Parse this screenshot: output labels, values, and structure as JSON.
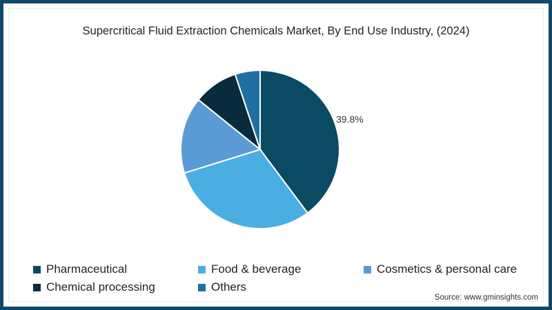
{
  "title": "Supercritical Fluid Extraction Chemicals Market, By End Use Industry, (2024)",
  "source": "Source: www.gminsights.com",
  "legend": [
    {
      "label": "Pharmaceutical",
      "color": "#0b4a63"
    },
    {
      "label": "Food & beverage",
      "color": "#4aaee3"
    },
    {
      "label": "Cosmetics & personal care",
      "color": "#5b9bd5"
    },
    {
      "label": "Chemical processing",
      "color": "#082c3d"
    },
    {
      "label": "Others",
      "color": "#1f6fa3"
    }
  ],
  "annotation": "39.8%",
  "chart_data": {
    "type": "pie",
    "title": "Supercritical Fluid Extraction Chemicals Market, By End Use Industry, (2024)",
    "categories": [
      "Pharmaceutical",
      "Food & beverage",
      "Cosmetics & personal care",
      "Chemical processing",
      "Others"
    ],
    "values": [
      39.8,
      30.4,
      15.6,
      9.1,
      5.1
    ],
    "colors": [
      "#0b4a63",
      "#4aaee3",
      "#5b9bd5",
      "#082c3d",
      "#1f6fa3"
    ],
    "data_labels": {
      "Pharmaceutical": "39.8%"
    },
    "start_angle": "12 o'clock, clockwise",
    "legend_position": "bottom",
    "unit": "%"
  }
}
